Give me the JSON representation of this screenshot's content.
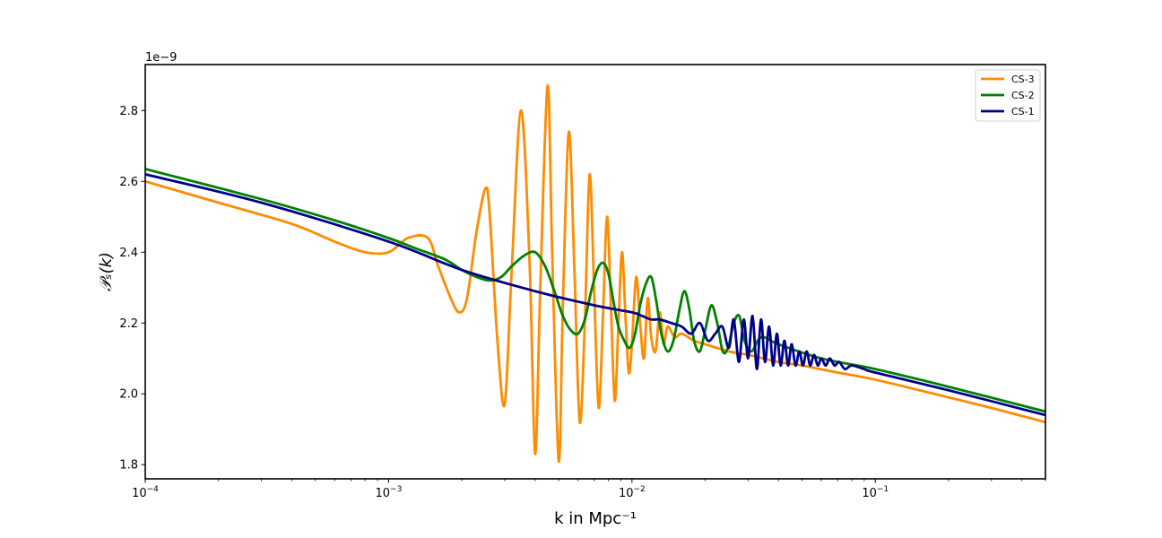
{
  "chart_data": {
    "type": "line",
    "x_scale": "log",
    "xlim": [
      0.0001,
      0.5
    ],
    "ylim": [
      1.76e-09,
      2.93e-09
    ],
    "y_multiplier_label": "1e−9",
    "ylabel": "𝒫ₛ(k)",
    "xlabel": "k in Mpc⁻¹",
    "x_ticks": [
      {
        "value": 0.0001,
        "base": "10",
        "exp": "−4"
      },
      {
        "value": 0.001,
        "base": "10",
        "exp": "−3"
      },
      {
        "value": 0.01,
        "base": "10",
        "exp": "−2"
      },
      {
        "value": 0.1,
        "base": "10",
        "exp": "−1"
      }
    ],
    "y_ticks": [
      {
        "value": 1.8e-09,
        "label": "1.8"
      },
      {
        "value": 2e-09,
        "label": "2.0"
      },
      {
        "value": 2.2e-09,
        "label": "2.2"
      },
      {
        "value": 2.4e-09,
        "label": "2.4"
      },
      {
        "value": 2.6e-09,
        "label": "2.6"
      },
      {
        "value": 2.8e-09,
        "label": "2.8"
      }
    ],
    "grid": false,
    "legend_placement": "top-right",
    "series": [
      {
        "name": "CS-3",
        "color": "#ff8c00",
        "x": [
          0.0001,
          0.0002,
          0.0004,
          0.0006,
          0.0008,
          0.001,
          0.0012,
          0.00145,
          0.0016,
          0.0018,
          0.00195,
          0.0021,
          0.0023,
          0.0025,
          0.0026,
          0.0028,
          0.003,
          0.0032,
          0.0035,
          0.0038,
          0.004,
          0.0042,
          0.0045,
          0.0047,
          0.005,
          0.0052,
          0.0055,
          0.0058,
          0.0061,
          0.0064,
          0.0067,
          0.007,
          0.0073,
          0.0076,
          0.0079,
          0.0082,
          0.0085,
          0.0088,
          0.0091,
          0.0094,
          0.0097,
          0.01,
          0.0104,
          0.0108,
          0.0112,
          0.0116,
          0.012,
          0.0125,
          0.013,
          0.0135,
          0.014,
          0.015,
          0.016,
          0.018,
          0.02,
          0.025,
          0.03,
          0.04,
          0.05,
          0.07,
          0.1,
          0.2,
          0.3,
          0.5
        ],
        "y": [
          2.6e-09,
          2.54e-09,
          2.48e-09,
          2.43e-09,
          2.4e-09,
          2.4e-09,
          2.44e-09,
          2.44e-09,
          2.36e-09,
          2.27e-09,
          2.23e-09,
          2.27e-09,
          2.46e-09,
          2.58e-09,
          2.51e-09,
          2.15e-09,
          1.97e-09,
          2.34e-09,
          2.8e-09,
          2.36e-09,
          1.83e-09,
          2.3e-09,
          2.87e-09,
          2.4e-09,
          1.81e-09,
          2.25e-09,
          2.74e-09,
          2.35e-09,
          1.92e-09,
          2.2e-09,
          2.62e-09,
          2.28e-09,
          1.96e-09,
          2.22e-09,
          2.5e-09,
          2.24e-09,
          1.98e-09,
          2.2e-09,
          2.4e-09,
          2.22e-09,
          2.06e-09,
          2.14e-09,
          2.33e-09,
          2.2e-09,
          2.1e-09,
          2.27e-09,
          2.16e-09,
          2.12e-09,
          2.23e-09,
          2.14e-09,
          2.19e-09,
          2.16e-09,
          2.17e-09,
          2.15e-09,
          2.14e-09,
          2.12e-09,
          2.11e-09,
          2.09e-09,
          2.08e-09,
          2.06e-09,
          2.04e-09,
          1.99e-09,
          1.96e-09,
          1.92e-09
        ]
      },
      {
        "name": "CS-2",
        "color": "#008000",
        "x": [
          0.0001,
          0.0003,
          0.0006,
          0.001,
          0.0013,
          0.0017,
          0.002,
          0.0023,
          0.0026,
          0.0029,
          0.0032,
          0.0036,
          0.004,
          0.0044,
          0.0048,
          0.0052,
          0.0056,
          0.006,
          0.0064,
          0.0068,
          0.0072,
          0.0076,
          0.008,
          0.0084,
          0.0088,
          0.0093,
          0.0098,
          0.0103,
          0.0108,
          0.0114,
          0.012,
          0.0126,
          0.0132,
          0.014,
          0.0148,
          0.0156,
          0.0164,
          0.0172,
          0.018,
          0.019,
          0.02,
          0.0212,
          0.0224,
          0.0236,
          0.0248,
          0.0262,
          0.0276,
          0.029,
          0.031,
          0.034,
          0.04,
          0.06,
          0.1,
          0.2,
          0.5
        ],
        "y": [
          2.635e-09,
          2.55e-09,
          2.49e-09,
          2.44e-09,
          2.41e-09,
          2.38e-09,
          2.35e-09,
          2.33e-09,
          2.32e-09,
          2.33e-09,
          2.36e-09,
          2.39e-09,
          2.4e-09,
          2.36e-09,
          2.29e-09,
          2.22e-09,
          2.18e-09,
          2.17e-09,
          2.21e-09,
          2.29e-09,
          2.35e-09,
          2.37e-09,
          2.34e-09,
          2.26e-09,
          2.19e-09,
          2.15e-09,
          2.13e-09,
          2.17e-09,
          2.25e-09,
          2.31e-09,
          2.33e-09,
          2.26e-09,
          2.17e-09,
          2.12e-09,
          2.15e-09,
          2.23e-09,
          2.29e-09,
          2.24e-09,
          2.15e-09,
          2.12e-09,
          2.18e-09,
          2.25e-09,
          2.2e-09,
          2.12e-09,
          2.13e-09,
          2.2e-09,
          2.22e-09,
          2.15e-09,
          2.12e-09,
          2.16e-09,
          2.14e-09,
          2.1e-09,
          2.07e-09,
          2.02e-09,
          1.95e-09
        ]
      },
      {
        "name": "CS-1",
        "color": "#00008b",
        "x": [
          0.0001,
          0.0003,
          0.001,
          0.002,
          0.004,
          0.007,
          0.01,
          0.011,
          0.012,
          0.013,
          0.0145,
          0.016,
          0.0175,
          0.019,
          0.0205,
          0.022,
          0.0235,
          0.025,
          0.0262,
          0.0275,
          0.0288,
          0.03,
          0.0313,
          0.0326,
          0.0339,
          0.0352,
          0.0366,
          0.038,
          0.0394,
          0.0408,
          0.0423,
          0.0438,
          0.0453,
          0.047,
          0.0487,
          0.0504,
          0.0522,
          0.054,
          0.056,
          0.058,
          0.06,
          0.0625,
          0.065,
          0.068,
          0.071,
          0.075,
          0.08,
          0.09,
          0.1,
          0.2,
          0.5
        ],
        "y": [
          2.62e-09,
          2.54e-09,
          2.43e-09,
          2.35e-09,
          2.29e-09,
          2.25e-09,
          2.23e-09,
          2.22e-09,
          2.21e-09,
          2.21e-09,
          2.2e-09,
          2.19e-09,
          2.17e-09,
          2.2e-09,
          2.15e-09,
          2.17e-09,
          2.19e-09,
          2.13e-09,
          2.21e-09,
          2.09e-09,
          2.21e-09,
          2.1e-09,
          2.22e-09,
          2.07e-09,
          2.21e-09,
          2.09e-09,
          2.19e-09,
          2.08e-09,
          2.17e-09,
          2.08e-09,
          2.15e-09,
          2.08e-09,
          2.14e-09,
          2.08e-09,
          2.12e-09,
          2.08e-09,
          2.12e-09,
          2.08e-09,
          2.11e-09,
          2.08e-09,
          2.1e-09,
          2.08e-09,
          2.1e-09,
          2.08e-09,
          2.09e-09,
          2.07e-09,
          2.08e-09,
          2.07e-09,
          2.06e-09,
          2.01e-09,
          1.94e-09
        ]
      }
    ]
  }
}
